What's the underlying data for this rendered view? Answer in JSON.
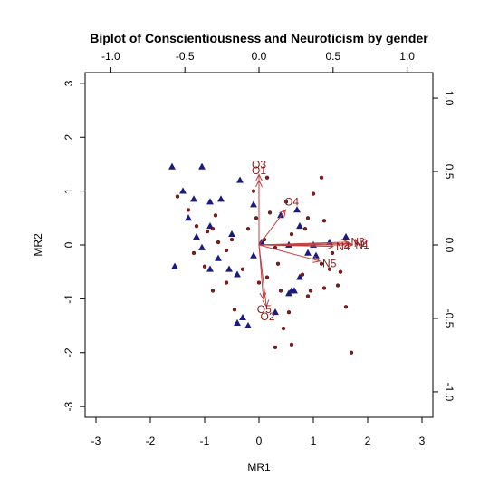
{
  "chart_data": {
    "type": "scatter",
    "title": "Biplot of Conscientiousness and Neuroticism by gender",
    "xlabel": "MR1",
    "ylabel": "MR2",
    "xlim": [
      -3.2,
      3.2
    ],
    "ylim": [
      -3.2,
      3.2
    ],
    "x_ticks": [
      "-3",
      "-2",
      "-1",
      "0",
      "1",
      "2",
      "3"
    ],
    "y_ticks": [
      "-3",
      "-2",
      "-1",
      "0",
      "1",
      "2",
      "3"
    ],
    "top_ticks": [
      "-1.0",
      "-0.5",
      "0.0",
      "0.5",
      "1.0"
    ],
    "right_ticks": [
      "-1.0",
      "-0.5",
      "0.0",
      "0.5",
      "1.0"
    ],
    "loading_scale_max": 1.1,
    "colors": {
      "group1": "#1a1a80",
      "group2": "#8b1a1a",
      "arrows": "#c04040"
    },
    "series": [
      {
        "marker": "triangle",
        "color": "#1a1a80",
        "points": [
          [
            -1.6,
            1.45
          ],
          [
            -1.4,
            1.0
          ],
          [
            -1.05,
            1.45
          ],
          [
            -1.2,
            0.85
          ],
          [
            -0.9,
            0.8
          ],
          [
            -0.7,
            0.85
          ],
          [
            -0.35,
            1.2
          ],
          [
            -0.1,
            0.75
          ],
          [
            -1.3,
            0.5
          ],
          [
            -1.15,
            0.15
          ],
          [
            -0.9,
            0.35
          ],
          [
            -0.5,
            0.2
          ],
          [
            -1.05,
            -0.05
          ],
          [
            -0.75,
            -0.25
          ],
          [
            -0.55,
            -0.45
          ],
          [
            -0.9,
            -0.45
          ],
          [
            -1.55,
            -0.4
          ],
          [
            -0.4,
            -0.55
          ],
          [
            -0.1,
            -0.2
          ],
          [
            0.05,
            0.05
          ],
          [
            0.4,
            0.55
          ],
          [
            0.7,
            0.65
          ],
          [
            0.75,
            0.35
          ],
          [
            0.55,
            0.0
          ],
          [
            0.9,
            -0.15
          ],
          [
            1.0,
            0.0
          ],
          [
            1.05,
            -0.2
          ],
          [
            1.3,
            0.05
          ],
          [
            0.75,
            -0.6
          ],
          [
            0.6,
            -0.85
          ],
          [
            0.55,
            -0.9
          ],
          [
            0.3,
            -1.25
          ],
          [
            -0.3,
            -1.35
          ],
          [
            -0.2,
            -1.5
          ],
          [
            -0.4,
            -1.45
          ],
          [
            1.6,
            0.15
          ],
          [
            0.65,
            -0.85
          ]
        ]
      },
      {
        "marker": "dot",
        "color": "#8b1a1a",
        "points": [
          [
            -1.5,
            0.9
          ],
          [
            -1.3,
            0.65
          ],
          [
            -1.15,
            0.35
          ],
          [
            -0.95,
            0.25
          ],
          [
            -0.85,
            0.3
          ],
          [
            -0.75,
            0.05
          ],
          [
            -0.6,
            -0.1
          ],
          [
            -0.5,
            0.1
          ],
          [
            -1.2,
            -0.15
          ],
          [
            -1.0,
            -0.4
          ],
          [
            -0.85,
            -0.85
          ],
          [
            -0.6,
            -0.7
          ],
          [
            -0.3,
            -0.45
          ],
          [
            -0.2,
            0.3
          ],
          [
            -0.1,
            1.0
          ],
          [
            -0.05,
            0.5
          ],
          [
            0.1,
            0.1
          ],
          [
            0.15,
            1.25
          ],
          [
            0.2,
            0.6
          ],
          [
            0.3,
            -0.05
          ],
          [
            0.35,
            -0.35
          ],
          [
            0.15,
            -0.6
          ],
          [
            0.0,
            -0.7
          ],
          [
            0.4,
            -0.85
          ],
          [
            0.45,
            -1.55
          ],
          [
            0.3,
            -1.9
          ],
          [
            0.55,
            -1.25
          ],
          [
            0.8,
            -0.55
          ],
          [
            0.9,
            -0.95
          ],
          [
            0.6,
            0.2
          ],
          [
            0.9,
            0.5
          ],
          [
            1.0,
            0.95
          ],
          [
            1.15,
            1.25
          ],
          [
            1.2,
            0.45
          ],
          [
            1.35,
            -0.15
          ],
          [
            1.5,
            -0.5
          ],
          [
            1.45,
            -0.75
          ],
          [
            1.2,
            -0.8
          ],
          [
            1.6,
            -1.15
          ],
          [
            1.15,
            -0.35
          ],
          [
            0.95,
            -0.85
          ],
          [
            1.3,
            -0.45
          ],
          [
            0.5,
            0.8
          ],
          [
            0.85,
            0.3
          ],
          [
            1.7,
            -2.0
          ],
          [
            0.6,
            -1.85
          ],
          [
            -0.45,
            -1.2
          ],
          [
            -0.8,
            0.55
          ]
        ]
      }
    ],
    "loadings": [
      {
        "label": "O1",
        "x": 0.0,
        "y": 0.44
      },
      {
        "label": "O3",
        "x": 0.0,
        "y": 0.48
      },
      {
        "label": "O4",
        "x": 0.18,
        "y": 0.24
      },
      {
        "label": "O2",
        "x": 0.05,
        "y": -0.42
      },
      {
        "label": "O5",
        "x": 0.03,
        "y": -0.37
      },
      {
        "label": "N1",
        "x": 0.63,
        "y": 0.0
      },
      {
        "label": "N2",
        "x": 0.62,
        "y": 0.01
      },
      {
        "label": "N3",
        "x": 0.6,
        "y": 0.02
      },
      {
        "label": "N4",
        "x": 0.5,
        "y": -0.01
      },
      {
        "label": "N5",
        "x": 0.41,
        "y": -0.11
      }
    ]
  }
}
